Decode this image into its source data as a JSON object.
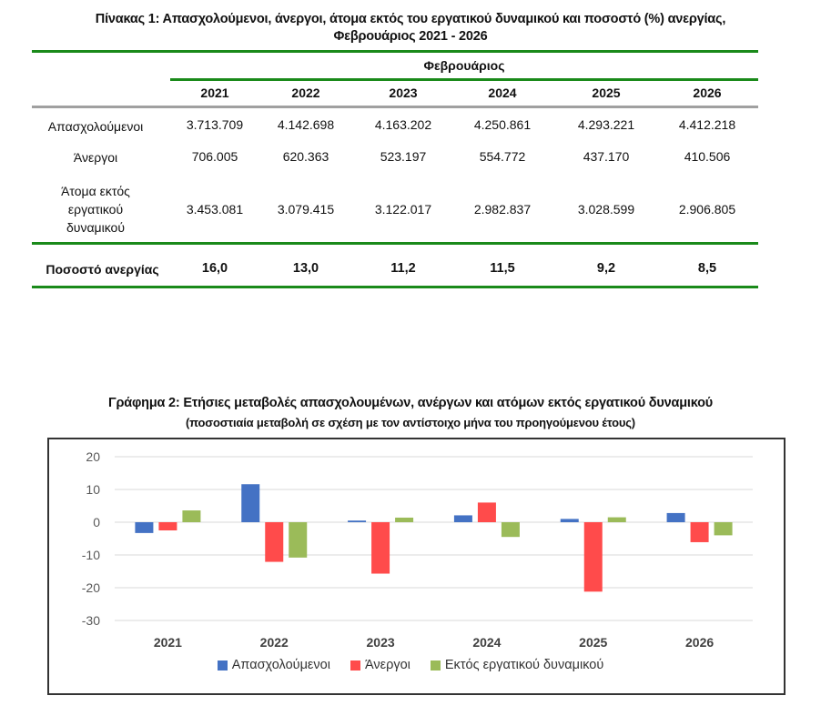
{
  "table": {
    "title_line1": "Πίνακας 1: Απασχολούμενοι, άνεργοι, άτομα εκτός του εργατικού δυναμικού και ποσοστό (%) ανεργίας,",
    "title_line2": "Φεβρουάριος 2021 - 2026",
    "group_header": "Φεβρουάριος",
    "years": [
      "2021",
      "2022",
      "2023",
      "2024",
      "2025",
      "2026"
    ],
    "rows": [
      {
        "label": "Απασχολούμενοι",
        "values": [
          "3.713.709",
          "4.142.698",
          "4.163.202",
          "4.250.861",
          "4.293.221",
          "4.412.218"
        ]
      },
      {
        "label": "Άνεργοι",
        "values": [
          "706.005",
          "620.363",
          "523.197",
          "554.772",
          "437.170",
          "410.506"
        ]
      },
      {
        "label_lines": [
          "Άτομα εκτός",
          "εργατικού",
          "δυναμικού"
        ],
        "values": [
          "3.453.081",
          "3.079.415",
          "3.122.017",
          "2.982.837",
          "3.028.599",
          "2.906.805"
        ]
      }
    ],
    "rate_row": {
      "label": "Ποσοστό ανεργίας",
      "values": [
        "16,0",
        "13,0",
        "11,2",
        "11,5",
        "9,2",
        "8,5"
      ]
    }
  },
  "chart_data": {
    "type": "bar",
    "title": "Γράφημα 2: Ετήσιες μεταβολές απασχολουμένων, ανέργων και ατόμων εκτός εργατικού δυναμικού",
    "subtitle": "(ποσοστιαία μεταβολή σε σχέση με τον αντίστοιχο μήνα του προηγούμενου έτους)",
    "xlabel": "",
    "ylabel": "",
    "categories": [
      "2021",
      "2022",
      "2023",
      "2024",
      "2025",
      "2026"
    ],
    "ylim": [
      -30,
      20
    ],
    "yticks": [
      20,
      10,
      0,
      -10,
      -20,
      -30
    ],
    "grid": true,
    "legend_position": "bottom",
    "series": [
      {
        "name": "Απασχολούμενοι",
        "color": "#4472C4",
        "values": [
          -3.3,
          11.6,
          0.5,
          2.1,
          1.0,
          2.8
        ]
      },
      {
        "name": "Άνεργοι",
        "color": "#FF4B4B",
        "values": [
          -2.5,
          -12.1,
          -15.7,
          6.0,
          -21.2,
          -6.1
        ]
      },
      {
        "name": "Εκτός εργατικού δυναμικού",
        "color": "#9BBB59",
        "values": [
          3.6,
          -10.8,
          1.4,
          -4.5,
          1.5,
          -4.0
        ]
      }
    ]
  }
}
